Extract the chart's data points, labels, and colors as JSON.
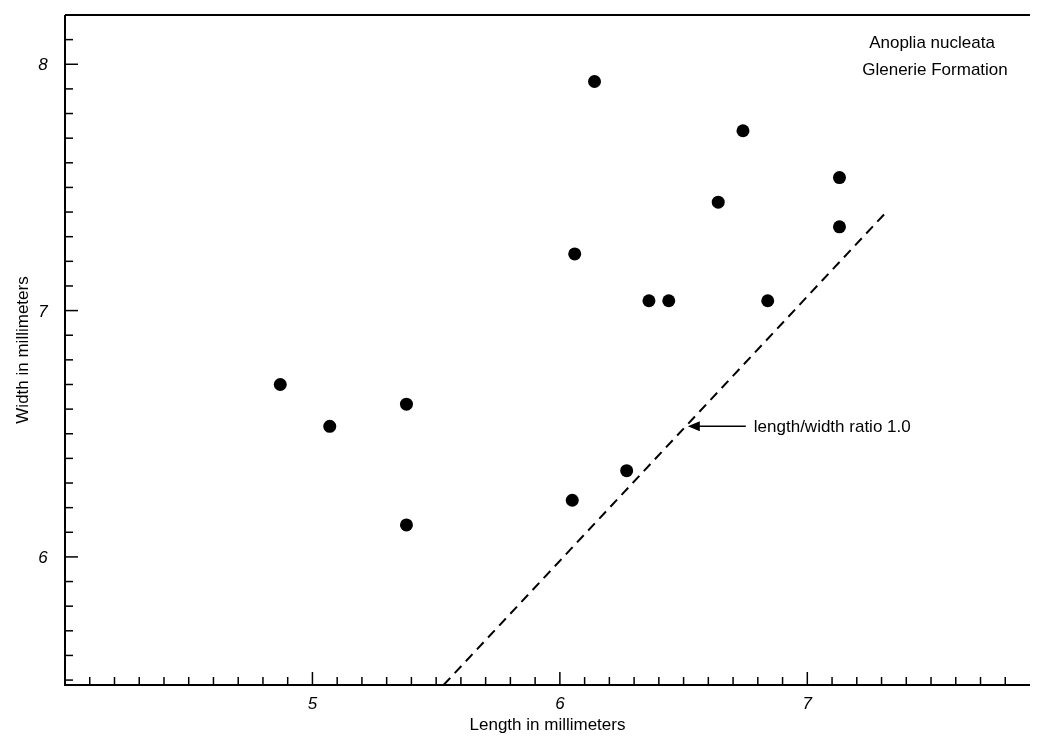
{
  "chart_data": {
    "type": "scatter",
    "xlabel": "Length  in  millimeters",
    "ylabel": "Width  in  millimeters",
    "xlim": [
      4,
      7.9
    ],
    "ylim": [
      5.48,
      8.2
    ],
    "xticks": [
      {
        "value": 4.1,
        "label": null
      },
      {
        "value": 4.2,
        "label": null
      },
      {
        "value": 4.3,
        "label": null
      },
      {
        "value": 4.4,
        "label": null
      },
      {
        "value": 4.5,
        "label": null
      },
      {
        "value": 4.6,
        "label": null
      },
      {
        "value": 4.7,
        "label": null
      },
      {
        "value": 4.8,
        "label": null
      },
      {
        "value": 4.9,
        "label": null
      },
      5,
      {
        "value": 5.1,
        "label": null
      },
      {
        "value": 5.2,
        "label": null
      },
      {
        "value": 5.3,
        "label": null
      },
      {
        "value": 5.4,
        "label": null
      },
      {
        "value": 5.5,
        "label": null
      },
      {
        "value": 5.6,
        "label": null
      },
      {
        "value": 5.7,
        "label": null
      },
      {
        "value": 5.8,
        "label": null
      },
      {
        "value": 5.9,
        "label": null
      },
      6,
      {
        "value": 6.1,
        "label": null
      },
      {
        "value": 6.2,
        "label": null
      },
      {
        "value": 6.3,
        "label": null
      },
      {
        "value": 6.4,
        "label": null
      },
      {
        "value": 6.5,
        "label": null
      },
      {
        "value": 6.6,
        "label": null
      },
      {
        "value": 6.7,
        "label": null
      },
      {
        "value": 6.8,
        "label": null
      },
      {
        "value": 6.9,
        "label": null
      },
      7,
      {
        "value": 7.1,
        "label": null
      },
      {
        "value": 7.2,
        "label": null
      },
      {
        "value": 7.3,
        "label": null
      },
      {
        "value": 7.4,
        "label": null
      },
      {
        "value": 7.5,
        "label": null
      },
      {
        "value": 7.6,
        "label": null
      },
      {
        "value": 7.7,
        "label": null
      },
      {
        "value": 7.8,
        "label": null
      }
    ],
    "yticks": [
      {
        "value": 5.5,
        "label": null
      },
      {
        "value": 5.6,
        "label": null
      },
      {
        "value": 5.7,
        "label": null
      },
      {
        "value": 5.8,
        "label": null
      },
      {
        "value": 5.9,
        "label": null
      },
      6,
      {
        "value": 6.1,
        "label": null
      },
      {
        "value": 6.2,
        "label": null
      },
      {
        "value": 6.3,
        "label": null
      },
      {
        "value": 6.4,
        "label": null
      },
      {
        "value": 6.5,
        "label": null
      },
      {
        "value": 6.6,
        "label": null
      },
      {
        "value": 6.7,
        "label": null
      },
      {
        "value": 6.8,
        "label": null
      },
      {
        "value": 6.9,
        "label": null
      },
      7,
      {
        "value": 7.1,
        "label": null
      },
      {
        "value": 7.2,
        "label": null
      },
      {
        "value": 7.3,
        "label": null
      },
      {
        "value": 7.4,
        "label": null
      },
      {
        "value": 7.5,
        "label": null
      },
      {
        "value": 7.6,
        "label": null
      },
      {
        "value": 7.7,
        "label": null
      },
      {
        "value": 7.8,
        "label": null
      },
      {
        "value": 7.9,
        "label": null
      },
      8,
      {
        "value": 8.1,
        "label": null
      }
    ],
    "series": [
      {
        "color": "#000000",
        "marker": "circle",
        "x": [
          4.87,
          5.07,
          5.38,
          5.38,
          6.05,
          6.27,
          6.06,
          6.14,
          6.36,
          6.44,
          6.64,
          6.74,
          6.84,
          7.13,
          7.13
        ],
        "values": [
          6.7,
          6.53,
          6.62,
          6.13,
          6.23,
          6.35,
          7.23,
          7.93,
          7.04,
          7.04,
          7.44,
          7.73,
          7.04,
          7.54,
          7.34
        ]
      },
      {
        "type": "line",
        "color": "#000000",
        "line_style": "dashed",
        "marker": "none",
        "x": [
          5.53,
          7.31
        ],
        "values": [
          5.48,
          7.39
        ]
      }
    ],
    "annotations": [
      "Anoplia nucleata",
      "Glenerie Formation",
      "length/width ratio 1.0"
    ]
  }
}
